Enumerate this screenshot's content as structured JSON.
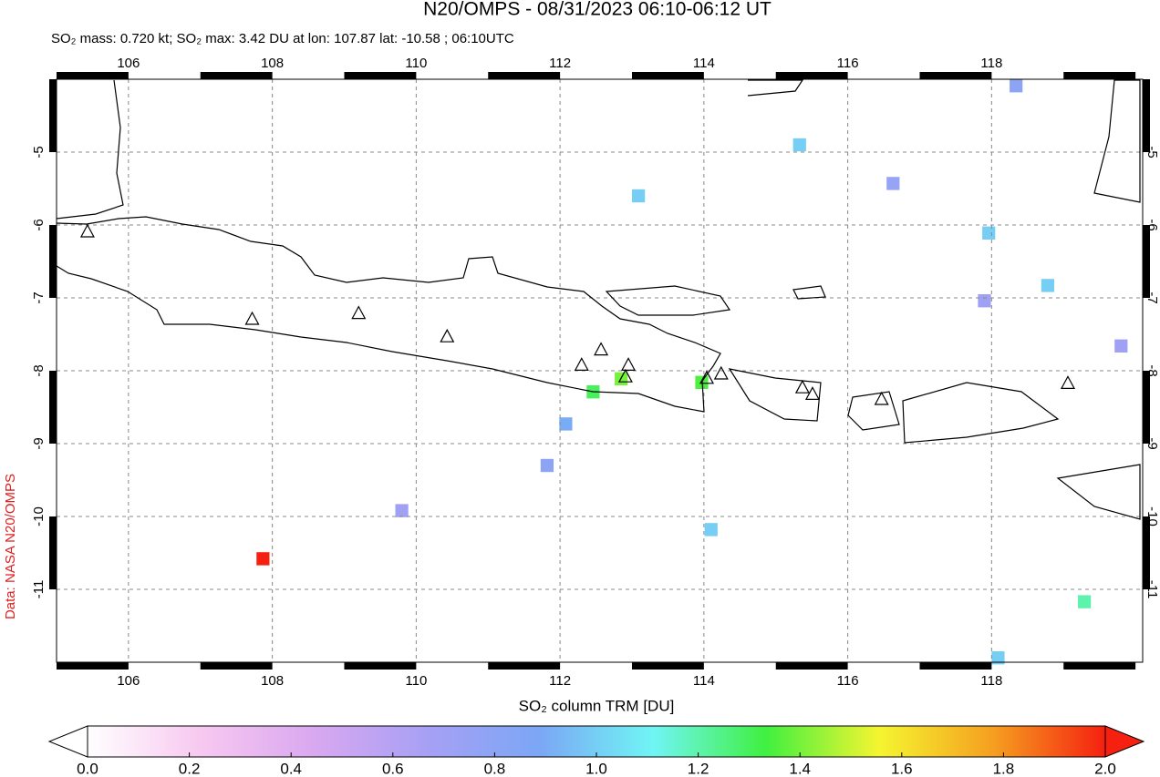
{
  "title": "N20/OMPS - 08/31/2023 06:10-06:12 UT",
  "subtitle": "SO₂ mass: 0.720 kt; SO₂ max: 3.42 DU at lon: 107.87 lat: -10.58 ; 06:10UTC",
  "source": "Data: NASA N20/OMPS",
  "map": {
    "xlim": [
      105,
      120.1
    ],
    "ylim": [
      -12,
      -4
    ],
    "xticks": [
      106,
      108,
      110,
      112,
      114,
      116,
      118
    ],
    "yticks": [
      -5,
      -6,
      -7,
      -8,
      -9,
      -10,
      -11
    ],
    "volcanoes": [
      [
        105.43,
        -6.1
      ],
      [
        107.72,
        -7.3
      ],
      [
        109.2,
        -7.22
      ],
      [
        110.43,
        -7.54
      ],
      [
        112.3,
        -7.93
      ],
      [
        112.57,
        -7.72
      ],
      [
        112.95,
        -7.93
      ],
      [
        112.91,
        -8.09
      ],
      [
        114.04,
        -8.11
      ],
      [
        114.24,
        -8.05
      ],
      [
        115.37,
        -8.24
      ],
      [
        115.51,
        -8.33
      ],
      [
        116.47,
        -8.4
      ],
      [
        119.06,
        -8.18
      ]
    ],
    "pixels": [
      {
        "lon": 107.87,
        "lat": -10.58,
        "value": 3.42
      },
      {
        "lon": 112.85,
        "lat": -8.11,
        "value": 1.4
      },
      {
        "lon": 112.46,
        "lat": -8.29,
        "value": 1.3
      },
      {
        "lon": 113.97,
        "lat": -8.16,
        "value": 1.35
      },
      {
        "lon": 113.09,
        "lat": -5.6,
        "value": 1.0
      },
      {
        "lon": 115.33,
        "lat": -4.9,
        "value": 1.0
      },
      {
        "lon": 117.96,
        "lat": -6.11,
        "value": 1.0
      },
      {
        "lon": 118.78,
        "lat": -6.83,
        "value": 1.0
      },
      {
        "lon": 119.29,
        "lat": -11.17,
        "value": 1.2
      },
      {
        "lon": 118.09,
        "lat": -11.94,
        "value": 1.0
      },
      {
        "lon": 118.34,
        "lat": -4.09,
        "value": 0.8
      },
      {
        "lon": 116.63,
        "lat": -5.43,
        "value": 0.75
      },
      {
        "lon": 111.82,
        "lat": -9.3,
        "value": 0.8
      },
      {
        "lon": 112.08,
        "lat": -8.73,
        "value": 0.9
      },
      {
        "lon": 109.8,
        "lat": -9.92,
        "value": 0.7
      },
      {
        "lon": 114.1,
        "lat": -10.18,
        "value": 1.0
      },
      {
        "lon": 117.9,
        "lat": -7.04,
        "value": 0.7
      },
      {
        "lon": 119.8,
        "lat": -7.66,
        "value": 0.7
      }
    ]
  },
  "colorbar": {
    "label": "SO₂ column TRM [DU]",
    "lim": [
      0,
      2
    ],
    "colors": [
      "#ffffff",
      "#f7c8f0",
      "#d9a8f0",
      "#a7a0f5",
      "#7ba7f5",
      "#70f5f5",
      "#40f040",
      "#f5f530",
      "#f5a020",
      "#f52010"
    ],
    "ticks": [
      {
        "value": 0,
        "label": "0.0"
      },
      0.2,
      0.4,
      0.6,
      0.8,
      {
        "value": 1,
        "label": "1.0"
      },
      1.2,
      1.4,
      1.6,
      1.8,
      {
        "value": 2,
        "label": "2.0"
      }
    ]
  }
}
